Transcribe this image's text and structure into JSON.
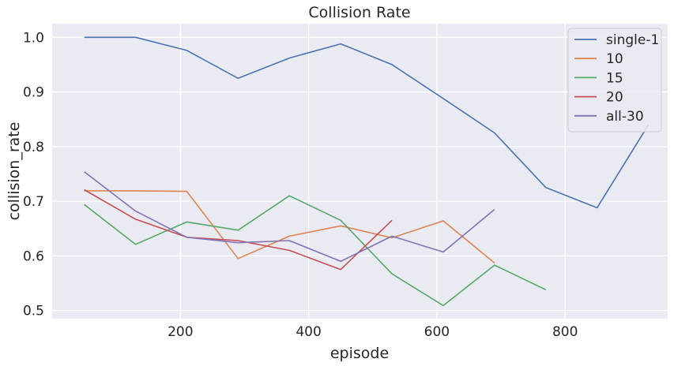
{
  "chart_data": {
    "type": "line",
    "title": "Collision Rate",
    "xlabel": "episode",
    "ylabel": "collision_rate",
    "xlim": [
      0,
      960
    ],
    "ylim": [
      0.485,
      1.025
    ],
    "xticks": [
      200,
      400,
      600,
      800
    ],
    "yticks": [
      0.5,
      0.6,
      0.7,
      0.8,
      0.9,
      1.0
    ],
    "ytick_labels": [
      "0.5",
      "0.6",
      "0.7",
      "0.8",
      "0.9",
      "1.0"
    ],
    "grid": true,
    "legend_position": "top-right",
    "series": [
      {
        "name": "single-1",
        "color": "#4c72b0",
        "x": [
          50,
          130,
          210,
          290,
          370,
          450,
          530,
          610,
          690,
          770,
          850,
          930
        ],
        "y": [
          1.0,
          1.0,
          0.976,
          0.925,
          0.962,
          0.988,
          0.95,
          0.888,
          0.825,
          0.725,
          0.688,
          0.84
        ]
      },
      {
        "name": "10",
        "color": "#dd8452",
        "x": [
          50,
          130,
          210,
          290,
          370,
          450,
          530,
          610,
          690
        ],
        "y": [
          0.719,
          0.719,
          0.718,
          0.595,
          0.636,
          0.655,
          0.633,
          0.664,
          0.587
        ]
      },
      {
        "name": "15",
        "color": "#55a868",
        "x": [
          50,
          130,
          210,
          290,
          370,
          450,
          530,
          610,
          690,
          770
        ],
        "y": [
          0.694,
          0.621,
          0.662,
          0.647,
          0.71,
          0.665,
          0.567,
          0.509,
          0.583,
          0.538
        ]
      },
      {
        "name": "20",
        "color": "#c44e52",
        "x": [
          50,
          130,
          210,
          290,
          370,
          450,
          530
        ],
        "y": [
          0.721,
          0.667,
          0.634,
          0.628,
          0.61,
          0.575,
          0.665
        ]
      },
      {
        "name": "all-30",
        "color": "#8172b3",
        "x": [
          50,
          130,
          210,
          290,
          370,
          450,
          530,
          610,
          690
        ],
        "y": [
          0.754,
          0.682,
          0.634,
          0.624,
          0.628,
          0.59,
          0.636,
          0.607,
          0.685
        ]
      }
    ]
  }
}
